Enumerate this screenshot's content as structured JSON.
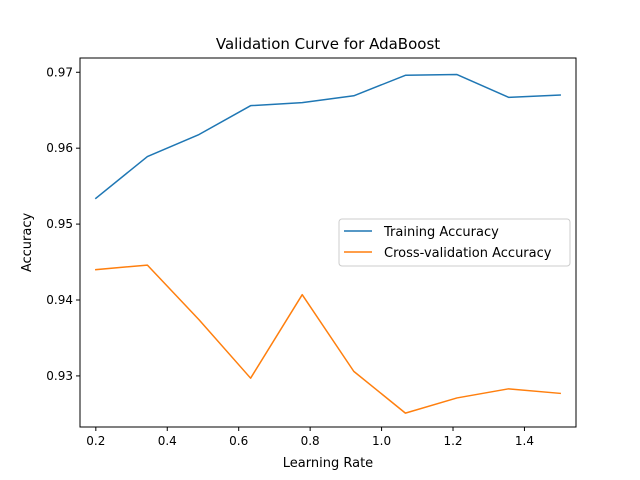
{
  "chart_data": {
    "type": "line",
    "title": "Validation Curve for AdaBoost",
    "xlabel": "Learning Rate",
    "ylabel": "Accuracy",
    "xlim": [
      0.1557,
      1.5443
    ],
    "ylim": [
      0.92327,
      0.97188
    ],
    "xticks": [
      0.2,
      0.4,
      0.6,
      0.8,
      1.0,
      1.2,
      1.4
    ],
    "xtick_labels": [
      "0.2",
      "0.4",
      "0.6",
      "0.8",
      "1.0",
      "1.2",
      "1.4"
    ],
    "yticks": [
      0.93,
      0.94,
      0.95,
      0.96,
      0.97
    ],
    "ytick_labels": [
      "0.93",
      "0.94",
      "0.95",
      "0.96",
      "0.97"
    ],
    "grid": false,
    "legend_position": "center-right",
    "x": [
      0.2,
      0.3444,
      0.4889,
      0.6333,
      0.7778,
      0.9222,
      1.0667,
      1.2111,
      1.3556,
      1.5
    ],
    "series": [
      {
        "name": "Training Accuracy",
        "color": "#1f77b4",
        "values": [
          0.9534,
          0.9589,
          0.9618,
          0.9656,
          0.966,
          0.9669,
          0.9696,
          0.9697,
          0.9667,
          0.967
        ]
      },
      {
        "name": "Cross-validation Accuracy",
        "color": "#ff7f0e",
        "values": [
          0.944,
          0.9446,
          0.9374,
          0.9297,
          0.9407,
          0.9306,
          0.9251,
          0.9271,
          0.9283,
          0.9277
        ]
      }
    ]
  }
}
